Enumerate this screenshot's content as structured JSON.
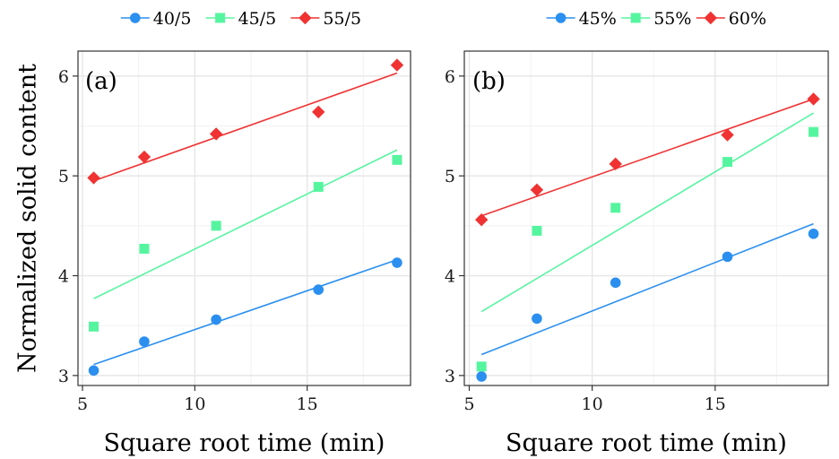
{
  "chart_data": [
    {
      "type": "scatter",
      "panel_label": "(a)",
      "xlabel": "Square root time (min)",
      "ylabel": "Normalized solid content",
      "xlim": [
        4.8,
        19.6
      ],
      "ylim": [
        2.9,
        6.25
      ],
      "xticks": [
        5,
        10,
        15
      ],
      "yticks": [
        3,
        4,
        5,
        6
      ],
      "grid": true,
      "legend_position": "top",
      "series": [
        {
          "name": "40/5",
          "color": "#2b8ff0",
          "marker": "circle",
          "x": [
            5.5,
            7.75,
            10.95,
            15.5,
            19.0
          ],
          "y": [
            3.05,
            3.34,
            3.56,
            3.86,
            4.13
          ],
          "fit": [
            [
              5.5,
              3.11
            ],
            [
              19.0,
              4.16
            ]
          ]
        },
        {
          "name": "45/5",
          "color": "#55f5a0",
          "marker": "square",
          "x": [
            5.5,
            7.75,
            10.95,
            15.5,
            19.0
          ],
          "y": [
            3.49,
            4.27,
            4.5,
            4.89,
            5.16
          ],
          "fit": [
            [
              5.5,
              3.77
            ],
            [
              19.0,
              5.26
            ]
          ]
        },
        {
          "name": "55/5",
          "color": "#f03232",
          "marker": "diamond",
          "x": [
            5.5,
            7.75,
            10.95,
            15.5,
            19.0
          ],
          "y": [
            4.98,
            5.19,
            5.42,
            5.64,
            6.11
          ],
          "fit": [
            [
              5.5,
              4.95
            ],
            [
              19.0,
              6.03
            ]
          ]
        }
      ]
    },
    {
      "type": "scatter",
      "panel_label": "(b)",
      "xlabel": "Square root time (min)",
      "ylabel": "",
      "xlim": [
        4.8,
        19.6
      ],
      "ylim": [
        2.9,
        6.25
      ],
      "xticks": [
        5,
        10,
        15
      ],
      "yticks": [
        3,
        4,
        5,
        6
      ],
      "grid": true,
      "legend_position": "top",
      "series": [
        {
          "name": "45%",
          "color": "#2b8ff0",
          "marker": "circle",
          "x": [
            5.5,
            7.75,
            10.95,
            15.5,
            19.0
          ],
          "y": [
            2.99,
            3.57,
            3.93,
            4.19,
            4.42
          ],
          "fit": [
            [
              5.5,
              3.21
            ],
            [
              19.0,
              4.52
            ]
          ]
        },
        {
          "name": "55%",
          "color": "#55f5a0",
          "marker": "square",
          "x": [
            5.5,
            7.75,
            10.95,
            15.5,
            19.0
          ],
          "y": [
            3.09,
            4.45,
            4.68,
            5.14,
            5.44
          ],
          "fit": [
            [
              5.5,
              3.64
            ],
            [
              19.0,
              5.63
            ]
          ]
        },
        {
          "name": "60%",
          "color": "#f03232",
          "marker": "diamond",
          "x": [
            5.5,
            7.75,
            10.95,
            15.5,
            19.0
          ],
          "y": [
            4.56,
            4.86,
            5.12,
            5.41,
            5.77
          ],
          "fit": [
            [
              5.5,
              4.6
            ],
            [
              19.0,
              5.77
            ]
          ]
        }
      ]
    }
  ]
}
